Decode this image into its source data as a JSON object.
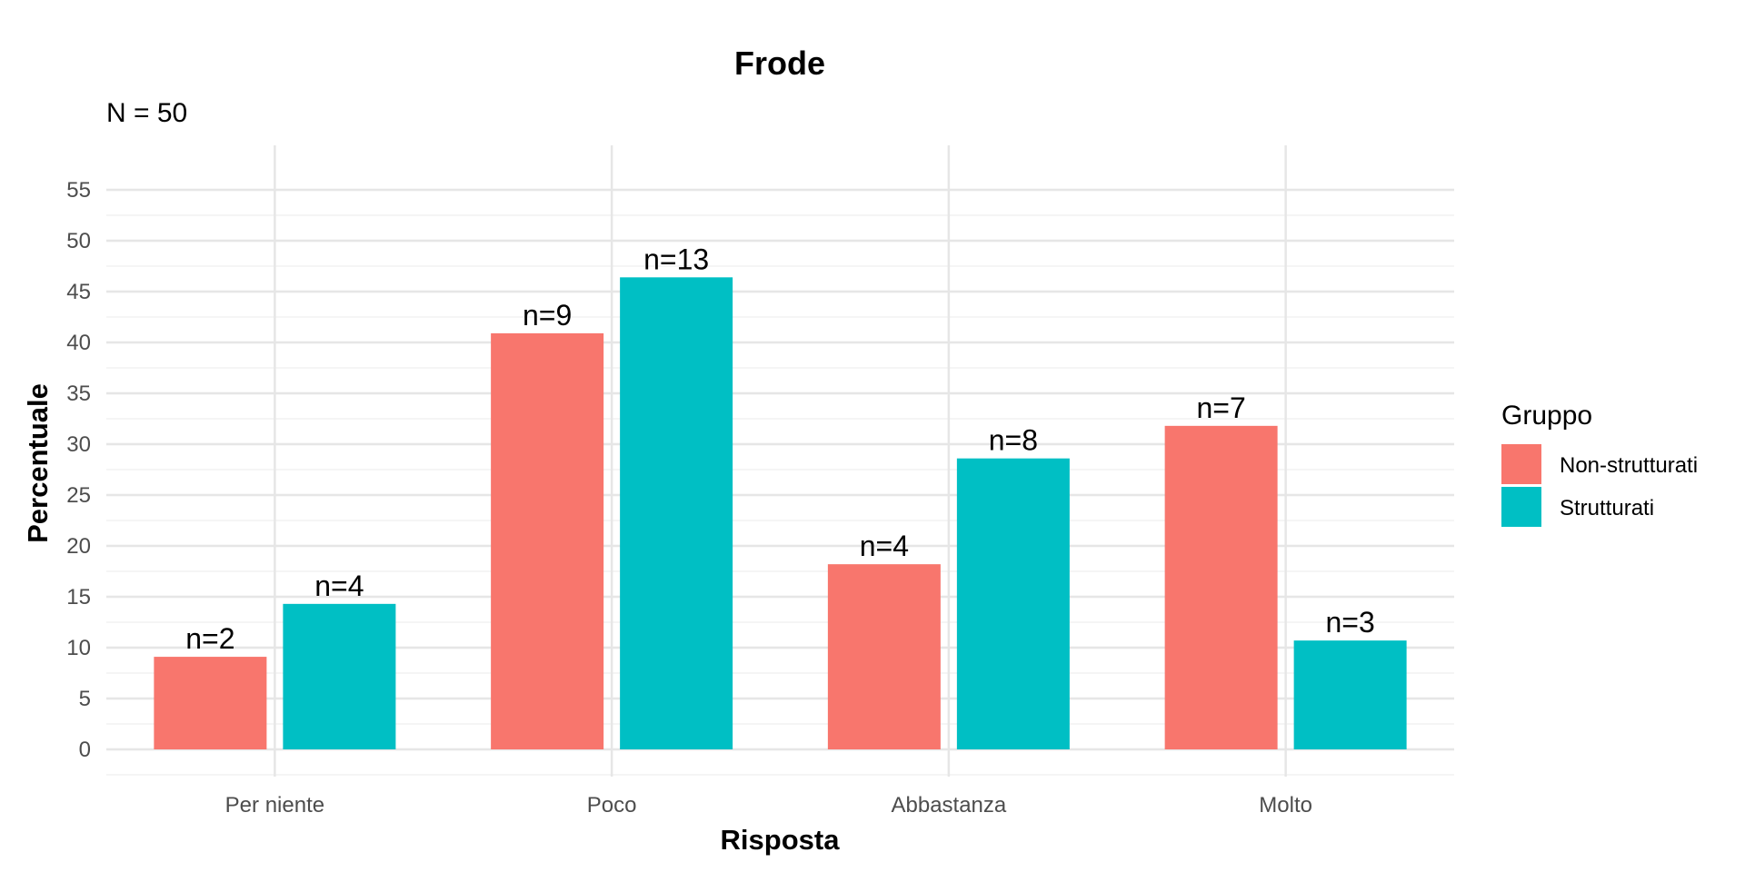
{
  "chart_data": {
    "type": "bar",
    "title": "Frode",
    "subtitle": "N = 50",
    "xlabel": "Risposta",
    "ylabel": "Percentuale",
    "categories": [
      "Per niente",
      "Poco",
      "Abbastanza",
      "Molto"
    ],
    "ylim": [
      0,
      57
    ],
    "yticks": [
      0,
      5,
      10,
      15,
      20,
      25,
      30,
      35,
      40,
      45,
      50,
      55
    ],
    "grid": true,
    "legend": {
      "title": "Gruppo",
      "position": "right"
    },
    "series": [
      {
        "name": "Non-strutturati",
        "color": "#F8766D",
        "values": [
          9.1,
          40.9,
          18.2,
          31.8
        ],
        "labels": [
          "n=2",
          "n=9",
          "n=4",
          "n=7"
        ]
      },
      {
        "name": "Strutturati",
        "color": "#00BFC4",
        "values": [
          14.3,
          46.4,
          28.6,
          10.7
        ],
        "labels": [
          "n=4",
          "n=13",
          "n=8",
          "n=3"
        ]
      }
    ]
  }
}
